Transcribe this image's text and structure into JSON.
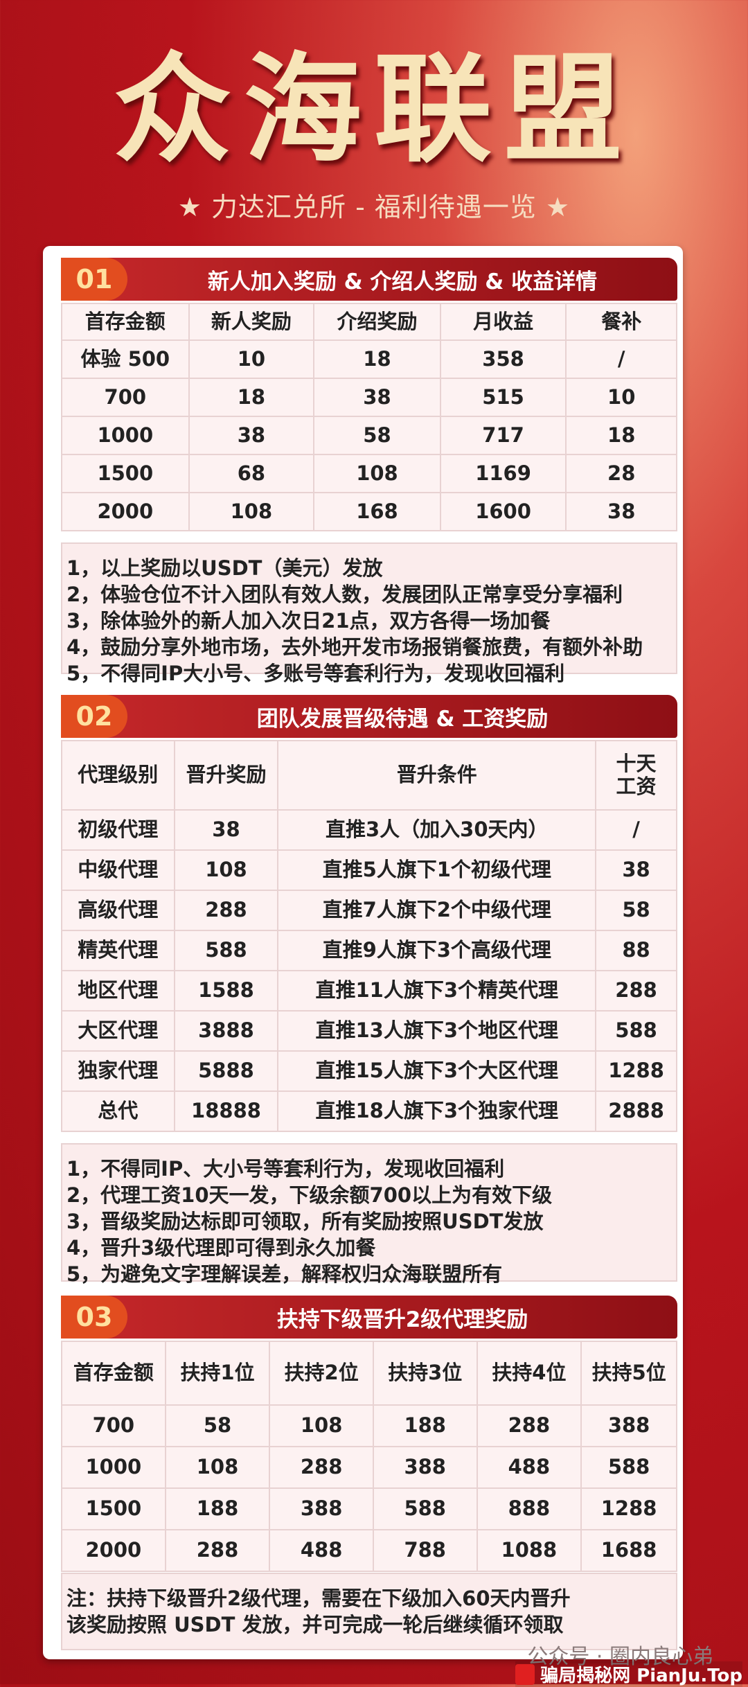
{
  "title": "众海联盟",
  "subtitle": "★ 力达汇兑所 - 福利待遇一览 ★",
  "sections": [
    {
      "num": "01",
      "title": "新人加入奖励 & 介绍人奖励 & 收益详情",
      "rows": [
        [
          "首存金额",
          "新人奖励",
          "介绍奖励",
          "月收益",
          "餐补"
        ],
        [
          "体验 500",
          "10",
          "18",
          "358",
          "/"
        ],
        [
          "700",
          "18",
          "38",
          "515",
          "10"
        ],
        [
          "1000",
          "38",
          "58",
          "717",
          "18"
        ],
        [
          "1500",
          "68",
          "108",
          "1169",
          "28"
        ],
        [
          "2000",
          "108",
          "168",
          "1600",
          "38"
        ]
      ],
      "notes": [
        "1，以上奖励以USDT（美元）发放",
        "2，体验仓位不计入团队有效人数，发展团队正常享受分享福利",
        "3，除体验外的新人加入次日21点，双方各得一场加餐",
        "4，鼓励分享外地市场，去外地开发市场报销餐旅费，有额外补助",
        "5，不得同IP大小号、多账号等套利行为，发现收回福利"
      ]
    },
    {
      "num": "02",
      "title": "团队发展晋级待遇 & 工资奖励",
      "rows": [
        [
          "代理级别",
          "晋升奖励",
          "晋升条件",
          "十天\n工资"
        ],
        [
          "初级代理",
          "38",
          "直推3人（加入30天内）",
          "/"
        ],
        [
          "中级代理",
          "108",
          "直推5人旗下1个初级代理",
          "38"
        ],
        [
          "高级代理",
          "288",
          "直推7人旗下2个中级代理",
          "58"
        ],
        [
          "精英代理",
          "588",
          "直推9人旗下3个高级代理",
          "88"
        ],
        [
          "地区代理",
          "1588",
          "直推11人旗下3个精英代理",
          "288"
        ],
        [
          "大区代理",
          "3888",
          "直推13人旗下3个地区代理",
          "588"
        ],
        [
          "独家代理",
          "5888",
          "直推15人旗下3个大区代理",
          "1288"
        ],
        [
          "总代",
          "18888",
          "直推18人旗下3个独家代理",
          "2888"
        ]
      ],
      "notes": [
        "1，不得同IP、大小号等套利行为，发现收回福利",
        "2，代理工资10天一发，下级余额700以上为有效下级",
        "3，晋级奖励达标即可领取，所有奖励按照USDT发放",
        "4，晋升3级代理即可得到永久加餐",
        "5，为避免文字理解误差，解释权归众海联盟所有"
      ]
    },
    {
      "num": "03",
      "title": "扶持下级晋升2级代理奖励",
      "rows": [
        [
          "首存金额",
          "扶持1位",
          "扶持2位",
          "扶持3位",
          "扶持4位",
          "扶持5位"
        ],
        [
          "700",
          "58",
          "108",
          "188",
          "288",
          "388"
        ],
        [
          "1000",
          "108",
          "288",
          "388",
          "488",
          "588"
        ],
        [
          "1500",
          "188",
          "388",
          "588",
          "888",
          "1288"
        ],
        [
          "2000",
          "288",
          "488",
          "788",
          "1088",
          "1688"
        ]
      ],
      "notes": [
        "注：扶持下级晋升2级代理，需要在下级加入60天内晋升",
        "该奖励按照 USDT 发放，并可完成一轮后继续循环领取"
      ]
    }
  ],
  "watermark": "公众号 · 圈内良心弟",
  "site_mark": "骗局揭秘网 PianJu.Top"
}
